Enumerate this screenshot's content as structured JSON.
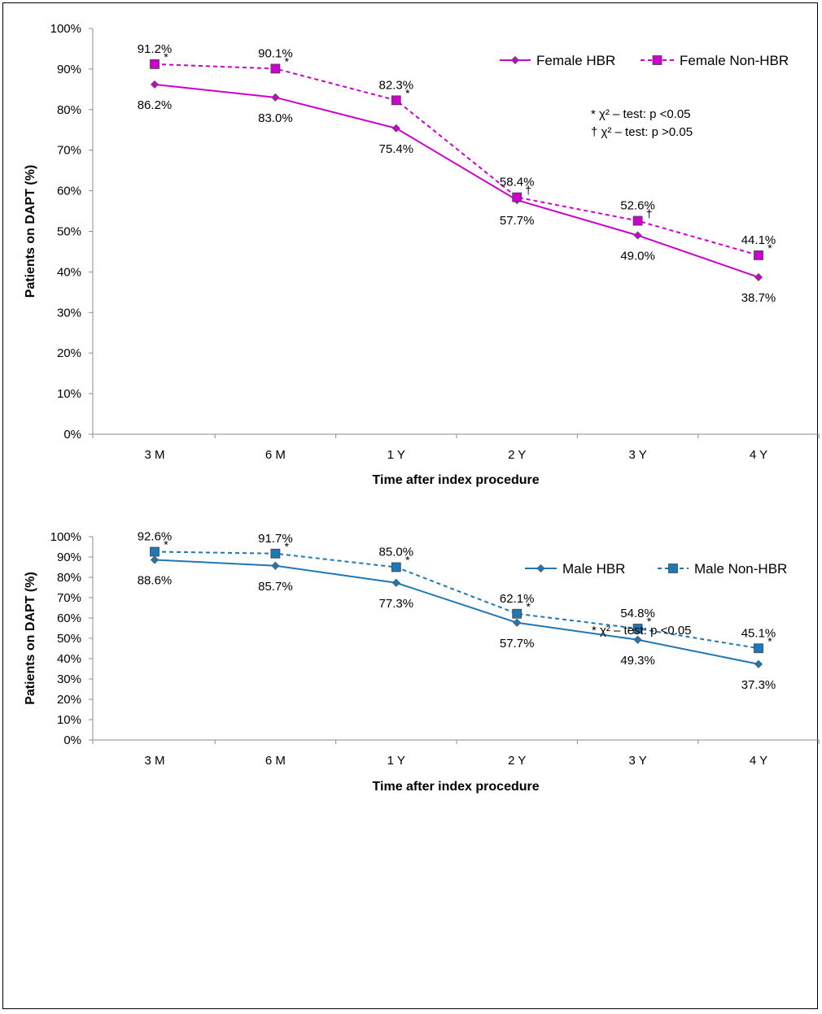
{
  "chart_data": [
    {
      "type": "line",
      "categories": [
        "3 M",
        "6 M",
        "1 Y",
        "2 Y",
        "3 Y",
        "4 Y"
      ],
      "xlabel": "Time after index procedure",
      "ylabel": "Patients on DAPT (%)",
      "ylim": [
        0,
        100
      ],
      "ytick_labels": [
        "0%",
        "10%",
        "20%",
        "30%",
        "40%",
        "50%",
        "60%",
        "70%",
        "80%",
        "90%",
        "100%"
      ],
      "grid": false,
      "legend_position": "top-right",
      "series": [
        {
          "name": "Female HBR",
          "color": "#CC00CC",
          "style": "solid",
          "marker": "diamond",
          "values": [
            86.2,
            83.0,
            75.4,
            57.7,
            49.0,
            38.7
          ],
          "labels": [
            "86.2%",
            "83.0%",
            "75.4%",
            "57.7%",
            "49.0%",
            "38.7%"
          ]
        },
        {
          "name": "Female Non-HBR",
          "color": "#CC00CC",
          "style": "dashed",
          "marker": "square",
          "values": [
            91.2,
            90.1,
            82.3,
            58.4,
            52.6,
            44.1
          ],
          "labels": [
            "91.2%",
            "90.1%",
            "82.3%",
            "58.4%",
            "52.6%",
            "44.1%"
          ],
          "significance_marks": [
            "*",
            "*",
            "*",
            "†",
            "†",
            "*"
          ]
        }
      ],
      "annotations": [
        "* χ² – test: p <0.05",
        "† χ² – test: p >0.05"
      ]
    },
    {
      "type": "line",
      "categories": [
        "3 M",
        "6 M",
        "1 Y",
        "2 Y",
        "3 Y",
        "4 Y"
      ],
      "xlabel": "Time after index procedure",
      "ylabel": "Patients on DAPT (%)",
      "ylim": [
        0,
        100
      ],
      "ytick_labels": [
        "0%",
        "10%",
        "20%",
        "30%",
        "40%",
        "50%",
        "60%",
        "70%",
        "80%",
        "90%",
        "100%"
      ],
      "grid": false,
      "legend_position": "top-right",
      "series": [
        {
          "name": "Male HBR",
          "color": "#1F77B4",
          "style": "solid",
          "marker": "diamond",
          "values": [
            88.6,
            85.7,
            77.3,
            57.7,
            49.3,
            37.3
          ],
          "labels": [
            "88.6%",
            "85.7%",
            "77.3%",
            "57.7%",
            "49.3%",
            "37.3%"
          ]
        },
        {
          "name": "Male Non-HBR",
          "color": "#1F77B4",
          "style": "dashed",
          "marker": "square",
          "values": [
            92.6,
            91.7,
            85.0,
            62.1,
            54.8,
            45.1
          ],
          "labels": [
            "92.6%",
            "91.7%",
            "85.0%",
            "62.1%",
            "54.8%",
            "45.1%"
          ],
          "significance_marks": [
            "*",
            "*",
            "*",
            "*",
            "*",
            "*"
          ]
        }
      ],
      "annotations": [
        "* χ² – test: p <0.05"
      ]
    }
  ]
}
